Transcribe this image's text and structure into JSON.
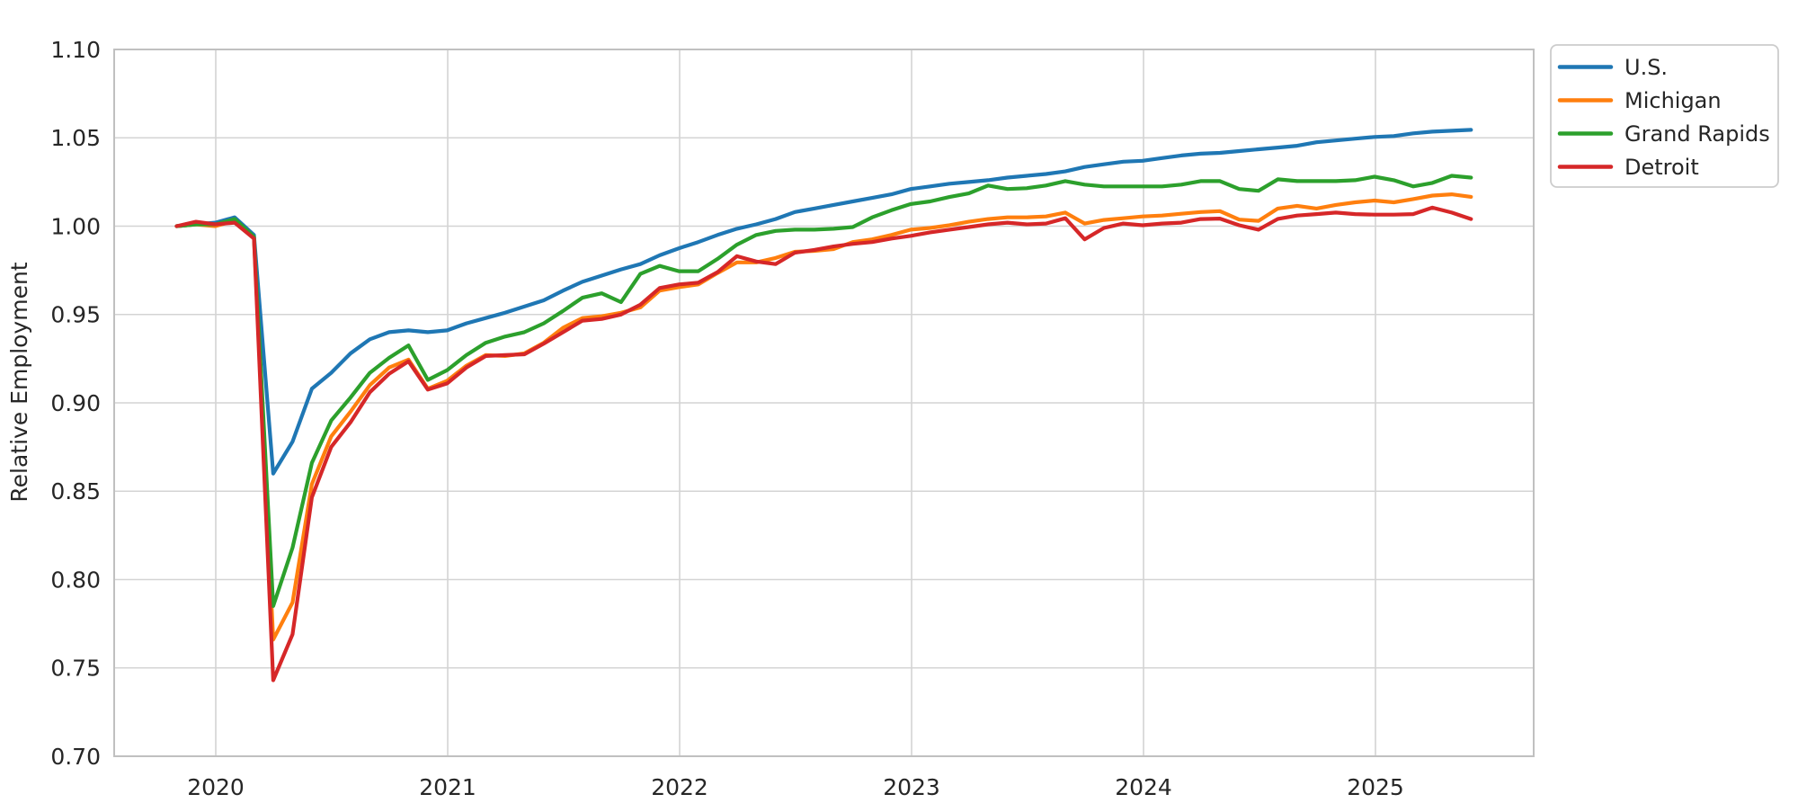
{
  "figure": {
    "background": "#ffffff",
    "text_color": "#262626",
    "grid_color": "#d4d4d4",
    "spine_color": "#c0c0c0"
  },
  "chart_data": {
    "type": "line",
    "title": "",
    "xlabel": "",
    "ylabel": "Relative Employment",
    "ylim": [
      0.7,
      1.1
    ],
    "y_ticks": [
      0.7,
      0.75,
      0.8,
      0.85,
      0.9,
      0.95,
      1.0,
      1.05,
      1.1
    ],
    "y_tick_labels": [
      "0.70",
      "0.75",
      "0.80",
      "0.85",
      "0.90",
      "0.95",
      "1.00",
      "1.05",
      "1.10"
    ],
    "x_tick_labels": [
      "2020",
      "2021",
      "2022",
      "2023",
      "2024",
      "2025"
    ],
    "grid": true,
    "legend_position": "outside-upper-right",
    "x": [
      "2019-11",
      "2019-12",
      "2020-01",
      "2020-02",
      "2020-03",
      "2020-04",
      "2020-05",
      "2020-06",
      "2020-07",
      "2020-08",
      "2020-09",
      "2020-10",
      "2020-11",
      "2020-12",
      "2021-01",
      "2021-02",
      "2021-03",
      "2021-04",
      "2021-05",
      "2021-06",
      "2021-07",
      "2021-08",
      "2021-09",
      "2021-10",
      "2021-11",
      "2021-12",
      "2022-01",
      "2022-02",
      "2022-03",
      "2022-04",
      "2022-05",
      "2022-06",
      "2022-07",
      "2022-08",
      "2022-09",
      "2022-10",
      "2022-11",
      "2022-12",
      "2023-01",
      "2023-02",
      "2023-03",
      "2023-04",
      "2023-05",
      "2023-06",
      "2023-07",
      "2023-08",
      "2023-09",
      "2023-10",
      "2023-11",
      "2023-12",
      "2024-01",
      "2024-02",
      "2024-03",
      "2024-04",
      "2024-05",
      "2024-06",
      "2024-07",
      "2024-08",
      "2024-09",
      "2024-10",
      "2024-11",
      "2024-12",
      "2025-01",
      "2025-02",
      "2025-03",
      "2025-04",
      "2025-05",
      "2025-06"
    ],
    "series": [
      {
        "name": "U.S.",
        "color": "#1f77b4",
        "values": [
          1.0,
          1.001,
          1.002,
          1.005,
          0.995,
          0.86,
          0.878,
          0.908,
          0.917,
          0.928,
          0.936,
          0.94,
          0.941,
          0.94,
          0.941,
          0.945,
          0.948,
          0.951,
          0.9545,
          0.958,
          0.9635,
          0.9685,
          0.972,
          0.9755,
          0.9785,
          0.9835,
          0.9875,
          0.991,
          0.995,
          0.9985,
          1.001,
          1.004,
          1.008,
          1.01,
          1.012,
          1.014,
          1.016,
          1.018,
          1.021,
          1.0225,
          1.024,
          1.025,
          1.026,
          1.0275,
          1.0285,
          1.0295,
          1.031,
          1.0335,
          1.035,
          1.0365,
          1.037,
          1.0385,
          1.04,
          1.041,
          1.0415,
          1.0425,
          1.0435,
          1.0445,
          1.0455,
          1.0475,
          1.0485,
          1.0495,
          1.0505,
          1.051,
          1.0525,
          1.0535,
          1.054,
          1.0545
        ]
      },
      {
        "name": "Michigan",
        "color": "#ff7f0e",
        "values": [
          1.0,
          1.001,
          1.0,
          1.003,
          0.993,
          0.766,
          0.787,
          0.854,
          0.881,
          0.895,
          0.91,
          0.92,
          0.9245,
          0.908,
          0.9125,
          0.921,
          0.927,
          0.9265,
          0.928,
          0.934,
          0.9425,
          0.948,
          0.949,
          0.951,
          0.954,
          0.9635,
          0.9655,
          0.967,
          0.9735,
          0.9795,
          0.9795,
          0.982,
          0.9855,
          0.986,
          0.987,
          0.991,
          0.9925,
          0.995,
          0.998,
          0.999,
          1.0005,
          1.0025,
          1.004,
          1.005,
          1.005,
          1.0055,
          1.0077,
          1.0015,
          1.0035,
          1.0045,
          1.0055,
          1.006,
          1.007,
          1.008,
          1.0085,
          1.0037,
          1.003,
          1.01,
          1.0115,
          1.01,
          1.012,
          1.0135,
          1.0145,
          1.0135,
          1.0153,
          1.0173,
          1.018,
          1.0166
        ]
      },
      {
        "name": "Grand Rapids",
        "color": "#2ca02c",
        "values": [
          1.0,
          1.001,
          1.001,
          1.004,
          0.994,
          0.785,
          0.818,
          0.866,
          0.89,
          0.903,
          0.917,
          0.9255,
          0.9325,
          0.913,
          0.9185,
          0.927,
          0.934,
          0.9375,
          0.94,
          0.945,
          0.952,
          0.9595,
          0.962,
          0.957,
          0.973,
          0.9775,
          0.9745,
          0.9745,
          0.9815,
          0.9895,
          0.995,
          0.9973,
          0.998,
          0.998,
          0.9985,
          0.9995,
          1.005,
          1.009,
          1.0125,
          1.014,
          1.0165,
          1.0185,
          1.023,
          1.021,
          1.0215,
          1.023,
          1.0255,
          1.0235,
          1.0225,
          1.0225,
          1.0225,
          1.0225,
          1.0235,
          1.0255,
          1.0255,
          1.021,
          1.02,
          1.0265,
          1.0255,
          1.0255,
          1.0255,
          1.026,
          1.028,
          1.026,
          1.0225,
          1.0245,
          1.0285,
          1.0275
        ]
      },
      {
        "name": "Detroit",
        "color": "#d62728",
        "values": [
          1.0,
          1.0025,
          1.001,
          1.002,
          0.993,
          0.743,
          0.769,
          0.8465,
          0.875,
          0.889,
          0.906,
          0.9165,
          0.9235,
          0.9075,
          0.911,
          0.92,
          0.9265,
          0.927,
          0.9275,
          0.9335,
          0.94,
          0.9465,
          0.9475,
          0.95,
          0.9555,
          0.965,
          0.967,
          0.968,
          0.974,
          0.983,
          0.98,
          0.9785,
          0.985,
          0.9865,
          0.9885,
          0.99,
          0.991,
          0.993,
          0.9945,
          0.9965,
          0.998,
          0.9995,
          1.001,
          1.002,
          1.001,
          1.0015,
          1.0045,
          0.9925,
          0.999,
          1.0015,
          1.0005,
          1.0015,
          1.002,
          1.004,
          1.0043,
          1.0005,
          0.998,
          1.0041,
          1.006,
          1.0068,
          1.0077,
          1.0068,
          1.0065,
          1.0065,
          1.0068,
          1.0105,
          1.0077,
          1.004
        ]
      }
    ],
    "legend": [
      "U.S.",
      "Michigan",
      "Grand Rapids",
      "Detroit"
    ]
  }
}
